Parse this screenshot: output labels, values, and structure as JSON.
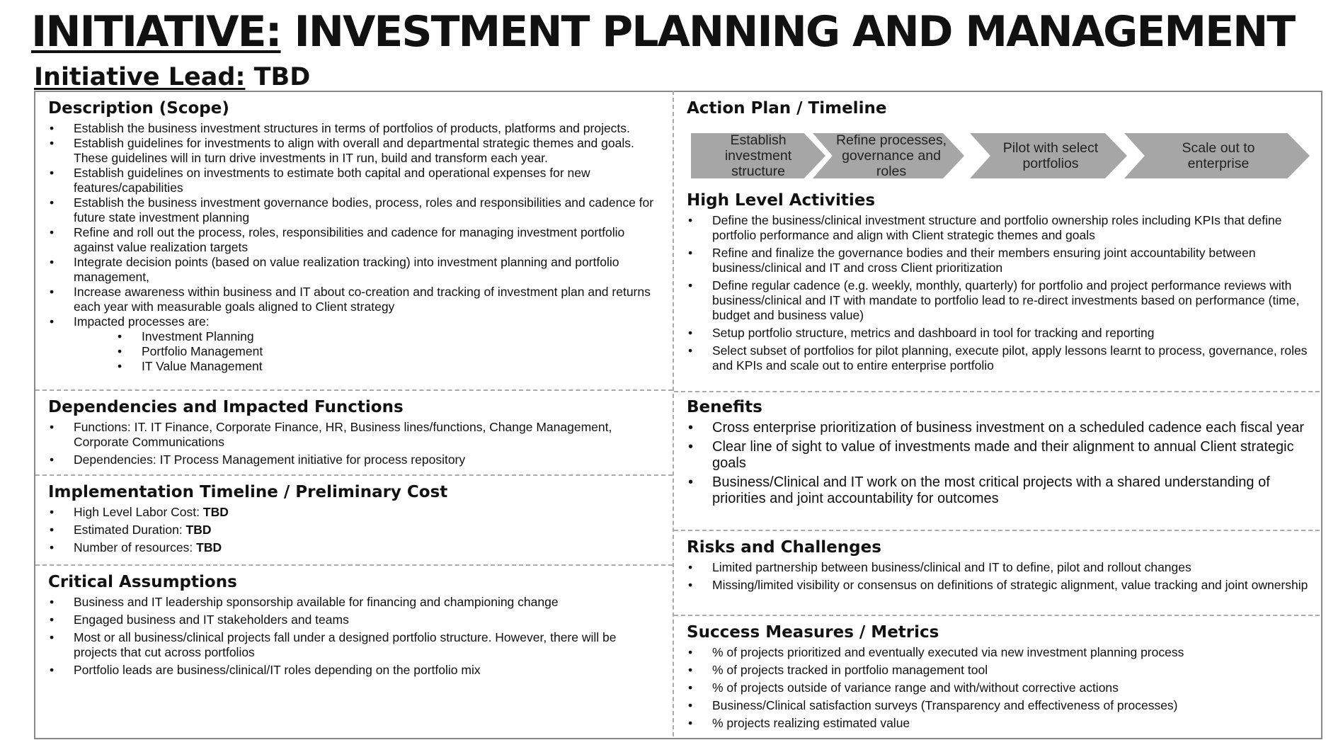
{
  "title": {
    "prefix": "INITIATIVE:",
    "rest": " INVESTMENT PLANNING AND MANAGEMENT"
  },
  "lead": {
    "label": "Initiative Lead:",
    "value": " TBD"
  },
  "description": {
    "heading": "Description (Scope)",
    "items": [
      "Establish the business investment structures in terms of portfolios of products, platforms and projects.",
      "Establish guidelines for investments to align with overall and departmental strategic themes and goals. These guidelines will in turn drive investments in IT run, build and transform each year.",
      "Establish guidelines on investments to estimate both capital and operational expenses for new features/capabilities",
      "Establish the business investment governance bodies, process, roles and responsibilities and cadence for future state investment planning",
      "Refine and roll out the process, roles, responsibilities and cadence for managing investment portfolio against value realization targets",
      "Integrate decision points (based on value realization tracking) into investment planning and portfolio management,",
      "Increase awareness within business and IT about co-creation and tracking of investment plan and returns each year with measurable goals aligned to Client strategy",
      "Impacted processes are:"
    ],
    "subitems": [
      "Investment Planning",
      "Portfolio Management",
      "IT Value Management"
    ]
  },
  "dependencies": {
    "heading": "Dependencies and Impacted Functions",
    "items": [
      "Functions: IT. IT Finance, Corporate Finance, HR, Business lines/functions, Change Management, Corporate Communications",
      "Dependencies: IT Process Management initiative for process repository"
    ]
  },
  "implementation": {
    "heading": "Implementation Timeline / Preliminary Cost",
    "items": [
      {
        "label": "High Level Labor Cost: ",
        "value": "TBD"
      },
      {
        "label": "Estimated Duration: ",
        "value": "TBD"
      },
      {
        "label": "Number of resources: ",
        "value": "TBD"
      }
    ]
  },
  "assumptions": {
    "heading": "Critical Assumptions",
    "items": [
      "Business and IT leadership sponsorship available for financing and championing change",
      "Engaged business and IT stakeholders and teams",
      "Most or all business/clinical projects fall under a designed portfolio structure. However, there will be projects that cut across portfolios",
      "Portfolio leads are business/clinical/IT roles depending on the portfolio mix"
    ]
  },
  "action_plan": {
    "heading": "Action Plan / Timeline",
    "steps": [
      "Establish investment structure",
      "Refine processes, governance and roles",
      "Pilot with select portfolios",
      "Scale out to enterprise"
    ],
    "step_color": "#a6a6a6"
  },
  "activities": {
    "heading": "High Level Activities",
    "items": [
      "Define the business/clinical investment structure and portfolio ownership roles including KPIs that define portfolio performance and align with Client strategic themes and goals",
      "Refine and finalize the governance bodies and their members ensuring joint accountability between business/clinical and IT and cross Client prioritization",
      "Define regular cadence (e.g. weekly, monthly, quarterly) for portfolio and project performance reviews with business/clinical and IT with mandate to portfolio lead to re-direct investments based on performance (time, budget and business value)",
      "Setup portfolio structure, metrics and dashboard in tool for tracking and reporting",
      "Select subset of portfolios for pilot planning, execute pilot, apply lessons learnt to process, governance, roles and KPIs and scale out to entire enterprise portfolio"
    ]
  },
  "benefits": {
    "heading": "Benefits",
    "items": [
      "Cross enterprise prioritization of business investment on a scheduled cadence each fiscal year",
      "Clear line of sight to value of investments made and their alignment to annual Client strategic goals",
      "Business/Clinical and IT work on the most critical projects with a shared understanding of priorities and joint accountability for outcomes"
    ]
  },
  "risks": {
    "heading": "Risks and Challenges",
    "items": [
      "Limited partnership between business/clinical and IT to define, pilot and rollout changes",
      "Missing/limited visibility or consensus on definitions of strategic alignment, value tracking and joint ownership"
    ]
  },
  "metrics": {
    "heading": "Success Measures / Metrics",
    "items": [
      "% of projects prioritized and eventually executed via new investment planning process",
      "% of projects tracked in portfolio management tool",
      "% of projects outside of variance range and with/without corrective actions",
      "Business/Clinical satisfaction surveys (Transparency and effectiveness of processes)",
      "% projects realizing estimated value"
    ]
  }
}
